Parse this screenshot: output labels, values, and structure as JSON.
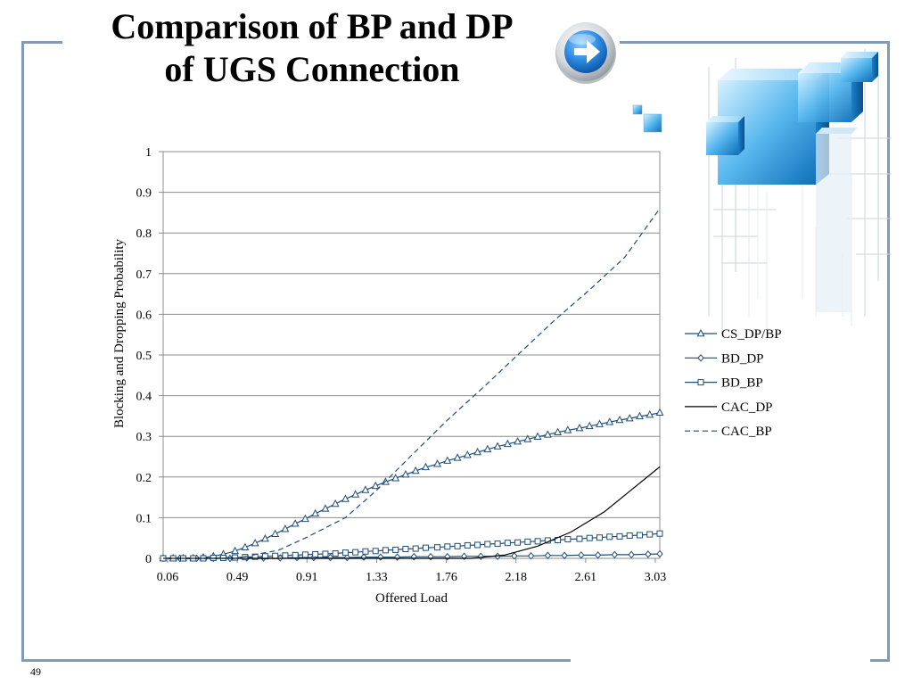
{
  "slide": {
    "title_line1": "Comparison of BP and DP",
    "title_line2": "of UGS Connection",
    "page_number": "49"
  },
  "colors": {
    "frame": "#7f9bb8",
    "series_blue": "#1f4e79",
    "series_black": "#000000"
  },
  "icons": {
    "nav": "arrow-right-icon"
  },
  "chart_data": {
    "type": "line",
    "xlabel": "Offered Load",
    "ylabel": "Blocking and Dropping Probability",
    "x_tick_labels": [
      "0.06",
      "0.49",
      "0.91",
      "1.33",
      "1.76",
      "2.18",
      "2.61",
      "3.03"
    ],
    "y_ticks": [
      0,
      0.1,
      0.2,
      0.3,
      0.4,
      0.5,
      0.6,
      0.7,
      0.8,
      0.9,
      1
    ],
    "y_tick_labels": [
      "0",
      "0.1",
      "0.2",
      "0.3",
      "0.4",
      "0.5",
      "0.6",
      "0.7",
      "0.8",
      "0.9",
      "1"
    ],
    "xlim": [
      0.06,
      3.03
    ],
    "ylim": [
      0,
      1
    ],
    "grid": "horizontal",
    "legend": "right",
    "series": [
      {
        "name": "CS_DP/BP",
        "style": "solid",
        "marker": "triangle",
        "points": [
          [
            0.06,
            0
          ],
          [
            0.12,
            0
          ],
          [
            0.18,
            0
          ],
          [
            0.24,
            0
          ],
          [
            0.3,
            0.002
          ],
          [
            0.36,
            0.005
          ],
          [
            0.42,
            0.01
          ],
          [
            0.49,
            0.018
          ],
          [
            0.55,
            0.027
          ],
          [
            0.61,
            0.037
          ],
          [
            0.67,
            0.048
          ],
          [
            0.73,
            0.06
          ],
          [
            0.79,
            0.072
          ],
          [
            0.85,
            0.085
          ],
          [
            0.91,
            0.097
          ],
          [
            0.97,
            0.11
          ],
          [
            1.03,
            0.122
          ],
          [
            1.09,
            0.134
          ],
          [
            1.15,
            0.146
          ],
          [
            1.21,
            0.157
          ],
          [
            1.27,
            0.168
          ],
          [
            1.33,
            0.178
          ],
          [
            1.39,
            0.188
          ],
          [
            1.45,
            0.197
          ],
          [
            1.51,
            0.206
          ],
          [
            1.57,
            0.215
          ],
          [
            1.63,
            0.224
          ],
          [
            1.7,
            0.232
          ],
          [
            1.76,
            0.24
          ],
          [
            1.82,
            0.247
          ],
          [
            1.88,
            0.254
          ],
          [
            1.94,
            0.261
          ],
          [
            2.0,
            0.268
          ],
          [
            2.06,
            0.275
          ],
          [
            2.12,
            0.281
          ],
          [
            2.18,
            0.287
          ],
          [
            2.24,
            0.293
          ],
          [
            2.3,
            0.299
          ],
          [
            2.36,
            0.304
          ],
          [
            2.42,
            0.31
          ],
          [
            2.48,
            0.315
          ],
          [
            2.55,
            0.32
          ],
          [
            2.61,
            0.325
          ],
          [
            2.67,
            0.33
          ],
          [
            2.73,
            0.335
          ],
          [
            2.79,
            0.34
          ],
          [
            2.85,
            0.344
          ],
          [
            2.91,
            0.349
          ],
          [
            2.97,
            0.353
          ],
          [
            3.03,
            0.358
          ]
        ]
      },
      {
        "name": "BD_DP",
        "style": "solid",
        "marker": "diamond",
        "points": [
          [
            0.06,
            0
          ],
          [
            0.16,
            0
          ],
          [
            0.26,
            0
          ],
          [
            0.36,
            0
          ],
          [
            0.46,
            0
          ],
          [
            0.56,
            0.001
          ],
          [
            0.66,
            0.001
          ],
          [
            0.76,
            0.001
          ],
          [
            0.86,
            0.002
          ],
          [
            0.96,
            0.002
          ],
          [
            1.06,
            0.002
          ],
          [
            1.16,
            0.002
          ],
          [
            1.26,
            0.003
          ],
          [
            1.36,
            0.003
          ],
          [
            1.46,
            0.003
          ],
          [
            1.56,
            0.004
          ],
          [
            1.66,
            0.004
          ],
          [
            1.76,
            0.004
          ],
          [
            1.86,
            0.005
          ],
          [
            1.96,
            0.005
          ],
          [
            2.06,
            0.005
          ],
          [
            2.16,
            0.006
          ],
          [
            2.26,
            0.006
          ],
          [
            2.36,
            0.007
          ],
          [
            2.46,
            0.007
          ],
          [
            2.56,
            0.008
          ],
          [
            2.66,
            0.008
          ],
          [
            2.76,
            0.009
          ],
          [
            2.86,
            0.009
          ],
          [
            2.96,
            0.01
          ],
          [
            3.03,
            0.011
          ]
        ]
      },
      {
        "name": "BD_BP",
        "style": "solid",
        "marker": "square",
        "points": [
          [
            0.06,
            0
          ],
          [
            0.12,
            0
          ],
          [
            0.18,
            0
          ],
          [
            0.24,
            0
          ],
          [
            0.3,
            0
          ],
          [
            0.36,
            0.001
          ],
          [
            0.42,
            0.001
          ],
          [
            0.49,
            0.002
          ],
          [
            0.55,
            0.003
          ],
          [
            0.61,
            0.004
          ],
          [
            0.67,
            0.005
          ],
          [
            0.73,
            0.006
          ],
          [
            0.79,
            0.007
          ],
          [
            0.85,
            0.008
          ],
          [
            0.91,
            0.009
          ],
          [
            0.97,
            0.01
          ],
          [
            1.03,
            0.011
          ],
          [
            1.09,
            0.012
          ],
          [
            1.15,
            0.014
          ],
          [
            1.21,
            0.015
          ],
          [
            1.27,
            0.017
          ],
          [
            1.33,
            0.018
          ],
          [
            1.39,
            0.02
          ],
          [
            1.45,
            0.021
          ],
          [
            1.51,
            0.023
          ],
          [
            1.57,
            0.024
          ],
          [
            1.63,
            0.026
          ],
          [
            1.7,
            0.027
          ],
          [
            1.76,
            0.029
          ],
          [
            1.82,
            0.03
          ],
          [
            1.88,
            0.032
          ],
          [
            1.94,
            0.033
          ],
          [
            2.0,
            0.035
          ],
          [
            2.06,
            0.036
          ],
          [
            2.12,
            0.038
          ],
          [
            2.18,
            0.039
          ],
          [
            2.24,
            0.041
          ],
          [
            2.3,
            0.042
          ],
          [
            2.36,
            0.044
          ],
          [
            2.42,
            0.045
          ],
          [
            2.48,
            0.047
          ],
          [
            2.55,
            0.048
          ],
          [
            2.61,
            0.05
          ],
          [
            2.67,
            0.051
          ],
          [
            2.73,
            0.053
          ],
          [
            2.79,
            0.054
          ],
          [
            2.85,
            0.056
          ],
          [
            2.91,
            0.057
          ],
          [
            2.97,
            0.059
          ],
          [
            3.03,
            0.061
          ]
        ]
      },
      {
        "name": "CAC_DP",
        "style": "solid",
        "marker": "none",
        "points": [
          [
            0.06,
            0
          ],
          [
            0.5,
            0
          ],
          [
            1.0,
            0
          ],
          [
            1.5,
            0
          ],
          [
            1.9,
            0
          ],
          [
            2.1,
            0.008
          ],
          [
            2.3,
            0.03
          ],
          [
            2.5,
            0.065
          ],
          [
            2.7,
            0.115
          ],
          [
            2.85,
            0.165
          ],
          [
            3.03,
            0.225
          ]
        ]
      },
      {
        "name": "CAC_BP",
        "style": "dashed",
        "marker": "none",
        "points": [
          [
            0.06,
            0
          ],
          [
            0.49,
            0
          ],
          [
            0.75,
            0.02
          ],
          [
            0.91,
            0.05
          ],
          [
            1.15,
            0.1
          ],
          [
            1.33,
            0.165
          ],
          [
            1.55,
            0.255
          ],
          [
            1.76,
            0.34
          ],
          [
            2.0,
            0.43
          ],
          [
            2.18,
            0.5
          ],
          [
            2.4,
            0.585
          ],
          [
            2.61,
            0.66
          ],
          [
            2.82,
            0.74
          ],
          [
            3.03,
            0.86
          ]
        ]
      }
    ]
  }
}
